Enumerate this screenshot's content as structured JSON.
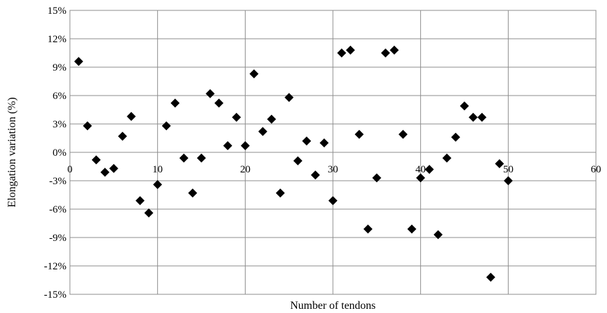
{
  "chart_data": {
    "type": "scatter",
    "title": "",
    "xlabel": "Number of tendons",
    "ylabel": "Elongation variation (%)",
    "xlim": [
      0,
      60
    ],
    "ylim": [
      -15,
      15
    ],
    "x_ticks": [
      0,
      10,
      20,
      30,
      40,
      50,
      60
    ],
    "x_tick_labels": [
      "0",
      "10",
      "20",
      "30",
      "40",
      "50",
      "60"
    ],
    "y_ticks": [
      15,
      12,
      9,
      6,
      3,
      0,
      -3,
      -6,
      -9,
      -12,
      -15
    ],
    "y_tick_labels": [
      "15%",
      "12%",
      "9%",
      "6%",
      "3%",
      "0%",
      "-3%",
      "-6%",
      "-9%",
      "-12%",
      "-15%"
    ],
    "grid": true,
    "legend": "none",
    "marker": "diamond",
    "marker_color": "#000000",
    "series": [
      {
        "x": [
          1,
          2,
          3,
          4,
          5,
          6,
          7,
          8,
          9,
          10,
          11,
          12,
          13,
          14,
          15,
          16,
          17,
          18,
          19,
          20,
          21,
          22,
          23,
          24,
          25,
          26,
          27,
          28,
          29,
          30,
          31,
          32,
          33,
          34,
          35,
          36,
          37,
          38,
          39,
          40,
          41,
          42,
          43,
          44,
          45,
          46,
          47,
          48,
          49,
          50
        ],
        "y": [
          9.6,
          2.8,
          -0.8,
          -2.1,
          -1.7,
          1.7,
          3.8,
          -5.1,
          -6.4,
          -3.4,
          2.8,
          5.2,
          -0.6,
          -4.3,
          -0.6,
          6.2,
          5.2,
          0.7,
          3.7,
          0.7,
          8.3,
          2.2,
          3.5,
          -4.3,
          5.8,
          -0.9,
          1.2,
          -2.4,
          1.0,
          -5.1,
          10.5,
          10.8,
          1.9,
          -8.1,
          -2.7,
          10.5,
          10.8,
          1.9,
          -8.1,
          -2.7,
          -1.8,
          -8.7,
          -0.6,
          1.6,
          4.9,
          3.7,
          3.7,
          -13.2,
          -1.2,
          -3.0
        ]
      }
    ]
  }
}
